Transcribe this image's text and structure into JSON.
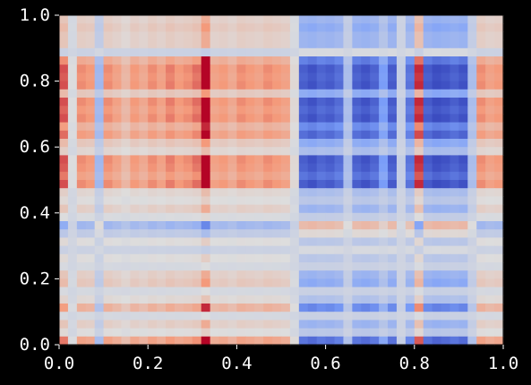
{
  "chart_data": {
    "type": "heatmap",
    "title": "",
    "xlabel": "",
    "ylabel": "",
    "xlim": [
      0.0,
      1.0
    ],
    "ylim": [
      0.0,
      1.0
    ],
    "grid": false,
    "colormap": "coolwarm",
    "background_color": "#000000",
    "text_color": "#ffffff",
    "x_ticks": [
      {
        "value": 0.0,
        "label": "0.0"
      },
      {
        "value": 0.2,
        "label": "0.2"
      },
      {
        "value": 0.4,
        "label": "0.4"
      },
      {
        "value": 0.6,
        "label": "0.6"
      },
      {
        "value": 0.8,
        "label": "0.8"
      },
      {
        "value": 1.0,
        "label": "1.0"
      }
    ],
    "y_ticks": [
      {
        "value": 0.0,
        "label": "0.0"
      },
      {
        "value": 0.2,
        "label": "0.2"
      },
      {
        "value": 0.4,
        "label": "0.4"
      },
      {
        "value": 0.6,
        "label": "0.6"
      },
      {
        "value": 0.8,
        "label": "0.8"
      },
      {
        "value": 1.0,
        "label": "1.0"
      }
    ],
    "column_profile": [
      0.7,
      0.4,
      0.62,
      0.6,
      0.28,
      0.62,
      0.58,
      0.52,
      0.6,
      0.56,
      0.62,
      0.58,
      0.64,
      0.6,
      0.62,
      0.66,
      0.95,
      0.58,
      0.6,
      0.56,
      0.62,
      0.6,
      0.58,
      0.62,
      0.6,
      0.58,
      0.42,
      0.05,
      0.02,
      0.06,
      0.04,
      0.08,
      0.3,
      0.05,
      0.02,
      0.06,
      0.2,
      0.04,
      0.35,
      0.1,
      0.75,
      0.04,
      0.0,
      0.02,
      0.05,
      0.02,
      0.3,
      0.62,
      0.58,
      0.6
    ],
    "row_profile": [
      0.55,
      0.6,
      0.55,
      0.55,
      0.35,
      0.8,
      0.95,
      0.92,
      0.95,
      0.6,
      0.95,
      0.9,
      0.95,
      0.75,
      0.88,
      0.6,
      0.5,
      0.95,
      0.92,
      0.85,
      0.95,
      0.5,
      0.45,
      0.55,
      0.42,
      0.15,
      0.3,
      0.45,
      0.35,
      0.45,
      0.4,
      0.55,
      0.6,
      0.4,
      0.48,
      0.75,
      0.4,
      0.55,
      0.45,
      0.85
    ],
    "colorscale": [
      [
        0.0,
        "#3b4cc0"
      ],
      [
        0.25,
        "#7b9ff9"
      ],
      [
        0.5,
        "#dddddd"
      ],
      [
        0.75,
        "#f49a7b"
      ],
      [
        1.0,
        "#b40426"
      ]
    ]
  }
}
